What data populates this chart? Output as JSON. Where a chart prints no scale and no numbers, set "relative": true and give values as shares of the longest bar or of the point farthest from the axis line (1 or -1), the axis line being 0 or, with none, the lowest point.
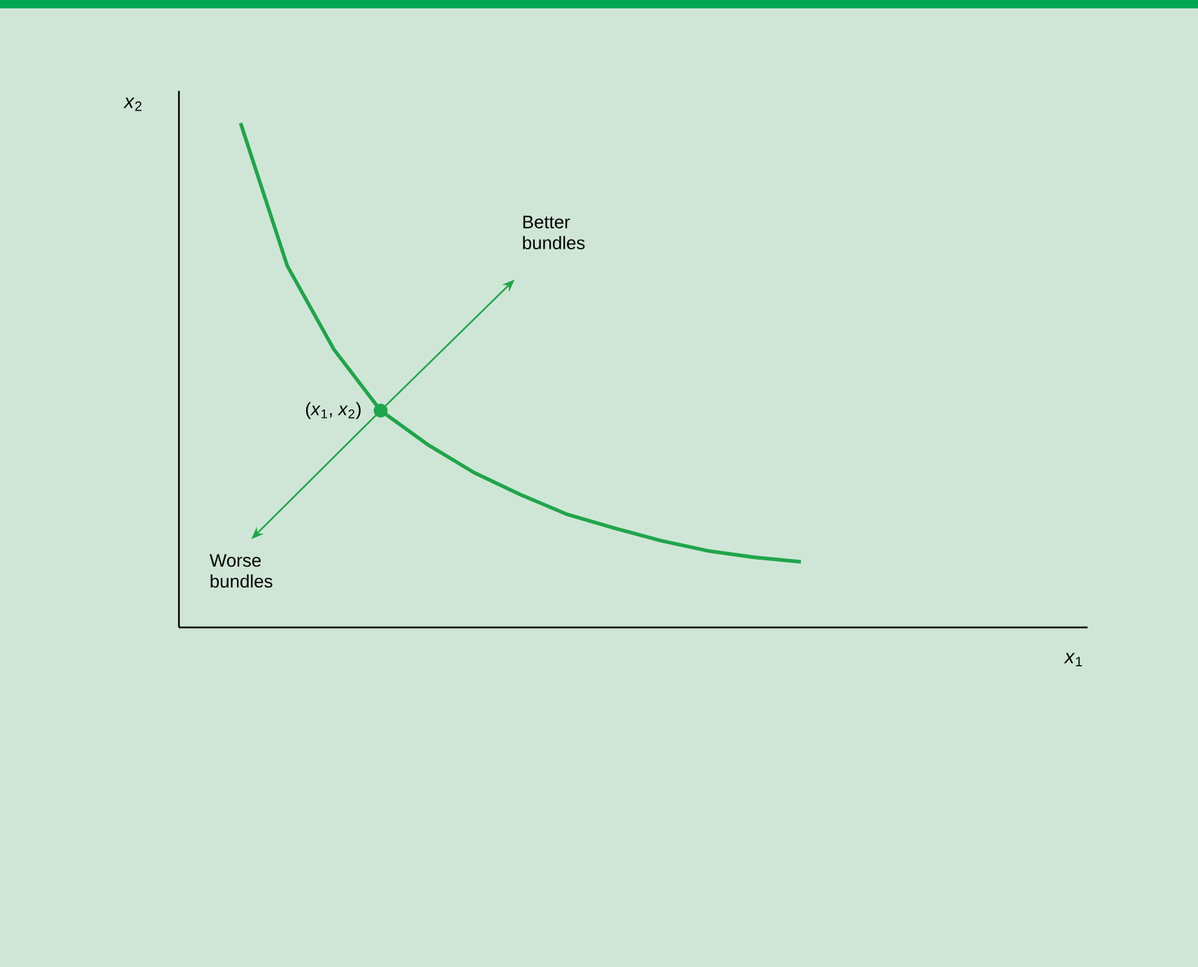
{
  "chart_data": {
    "type": "line",
    "relative": true,
    "ylabel": "*x*$_{2}$",
    "categories": [
      null,
      null,
      null,
      null,
      null,
      null,
      null,
      null,
      null,
      null,
      null,
      null,
      null
    ],
    "series": [
      {
        "color": "#1fa54a",
        "values": [
          1.0,
          0.717,
          0.551,
          0.43,
          0.363,
          0.307,
          0.263,
          0.224,
          0.197,
          0.172,
          0.152,
          0.139,
          0.13
        ]
      }
    ],
    "annotations": [
      "(*x*$_{1}$, *x*$_{2}$)",
      "Better bundles",
      "Worse bundles",
      "*x*$_{1}$"
    ]
  }
}
